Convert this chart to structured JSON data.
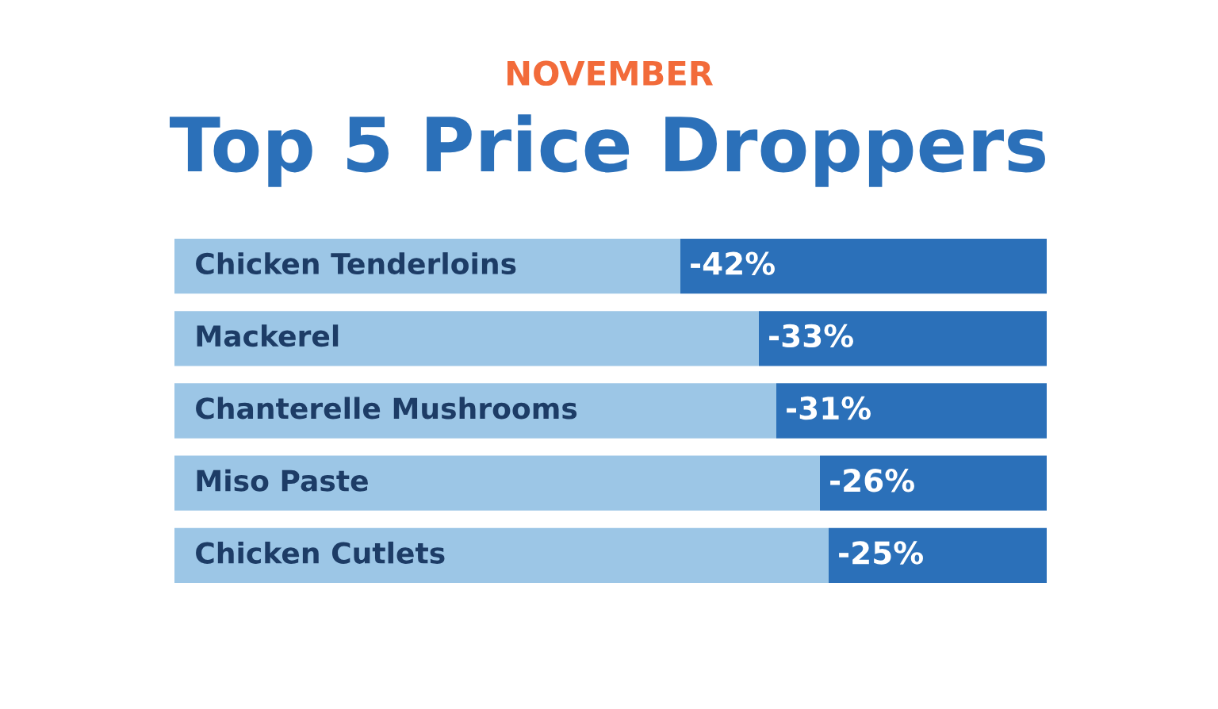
{
  "chart_data": {
    "type": "bar",
    "orientation": "horizontal",
    "stacked": true,
    "subtitle": "NOVEMBER",
    "title": "Top 5 Price Droppers",
    "categories": [
      "Chicken Tenderloins",
      "Mackerel",
      "Chanterelle Mushrooms",
      "Miso Paste",
      "Chicken Cutlets"
    ],
    "series": [
      {
        "color": "#2b70b9",
        "values": [
          -42,
          -33,
          -31,
          -26,
          -25
        ],
        "value_labels": [
          "-42%",
          "-33%",
          "-31%",
          "-26%",
          "-25%"
        ]
      },
      {
        "color": "#9cc6e6",
        "values": [
          -58,
          -67,
          -69,
          -74,
          -75
        ]
      }
    ],
    "xlim": [
      -100,
      0
    ],
    "tick_labels": false
  }
}
